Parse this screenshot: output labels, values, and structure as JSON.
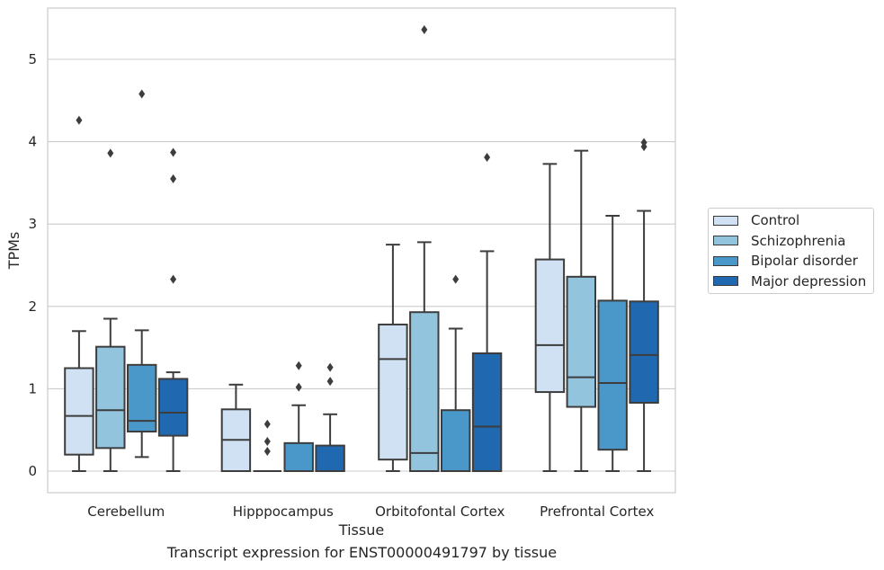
{
  "chart_data": {
    "type": "box",
    "caption": "Transcript expression for ENST00000491797 by tissue",
    "xlabel": "Tissue",
    "ylabel": "TPMs",
    "ylim": [
      -0.26,
      5.62
    ],
    "yticks": [
      0,
      1,
      2,
      3,
      4,
      5
    ],
    "grid": true,
    "legend_position": "right",
    "categories": [
      "Cerebellum",
      "Hipppocampus",
      "Orbitofontal Cortex",
      "Prefrontal Cortex"
    ],
    "series": [
      {
        "name": "Control",
        "color": "#cfe1f2",
        "boxes": [
          {
            "whislo": 0,
            "q1": 0.2,
            "med": 0.67,
            "q3": 1.25,
            "whishi": 1.7,
            "fliers": [
              4.26
            ]
          },
          {
            "whislo": 0,
            "q1": 0,
            "med": 0.38,
            "q3": 0.75,
            "whishi": 1.05,
            "fliers": []
          },
          {
            "whislo": 0,
            "q1": 0.14,
            "med": 1.36,
            "q3": 1.78,
            "whishi": 2.75,
            "fliers": []
          },
          {
            "whislo": 0,
            "q1": 0.96,
            "med": 1.53,
            "q3": 2.57,
            "whishi": 3.73,
            "fliers": []
          }
        ]
      },
      {
        "name": "Schizophrenia",
        "color": "#93c4de",
        "boxes": [
          {
            "whislo": 0,
            "q1": 0.28,
            "med": 0.74,
            "q3": 1.51,
            "whishi": 1.85,
            "fliers": [
              3.86
            ]
          },
          {
            "whislo": 0,
            "q1": 0,
            "med": 0,
            "q3": 0,
            "whishi": 0,
            "fliers": [
              0.57,
              0.36,
              0.24
            ]
          },
          {
            "whislo": 0,
            "q1": 0,
            "med": 0.22,
            "q3": 1.93,
            "whishi": 2.78,
            "fliers": [
              5.36
            ]
          },
          {
            "whislo": 0,
            "q1": 0.78,
            "med": 1.14,
            "q3": 2.36,
            "whishi": 3.89,
            "fliers": []
          }
        ]
      },
      {
        "name": "Bipolar disorder",
        "color": "#4a98c9",
        "boxes": [
          {
            "whislo": 0.17,
            "q1": 0.48,
            "med": 0.61,
            "q3": 1.29,
            "whishi": 1.71,
            "fliers": [
              4.58
            ]
          },
          {
            "whislo": 0,
            "q1": 0,
            "med": 0,
            "q3": 0.34,
            "whishi": 0.8,
            "fliers": [
              1.28,
              1.02
            ]
          },
          {
            "whislo": 0,
            "q1": 0,
            "med": 0,
            "q3": 0.74,
            "whishi": 1.73,
            "fliers": [
              2.33
            ]
          },
          {
            "whislo": 0,
            "q1": 0.26,
            "med": 1.07,
            "q3": 2.07,
            "whishi": 3.1,
            "fliers": []
          }
        ]
      },
      {
        "name": "Major depression",
        "color": "#2068b0",
        "boxes": [
          {
            "whislo": 0,
            "q1": 0.43,
            "med": 0.71,
            "q3": 1.12,
            "whishi": 1.2,
            "fliers": [
              3.87,
              3.55,
              2.33
            ]
          },
          {
            "whislo": 0,
            "q1": 0,
            "med": 0,
            "q3": 0.31,
            "whishi": 0.69,
            "fliers": [
              1.26,
              1.09
            ]
          },
          {
            "whislo": 0,
            "q1": 0,
            "med": 0.54,
            "q3": 1.43,
            "whishi": 2.67,
            "fliers": [
              3.81
            ]
          },
          {
            "whislo": 0,
            "q1": 0.83,
            "med": 1.41,
            "q3": 2.06,
            "whishi": 3.16,
            "fliers": [
              3.99,
              3.94
            ]
          }
        ]
      }
    ]
  }
}
